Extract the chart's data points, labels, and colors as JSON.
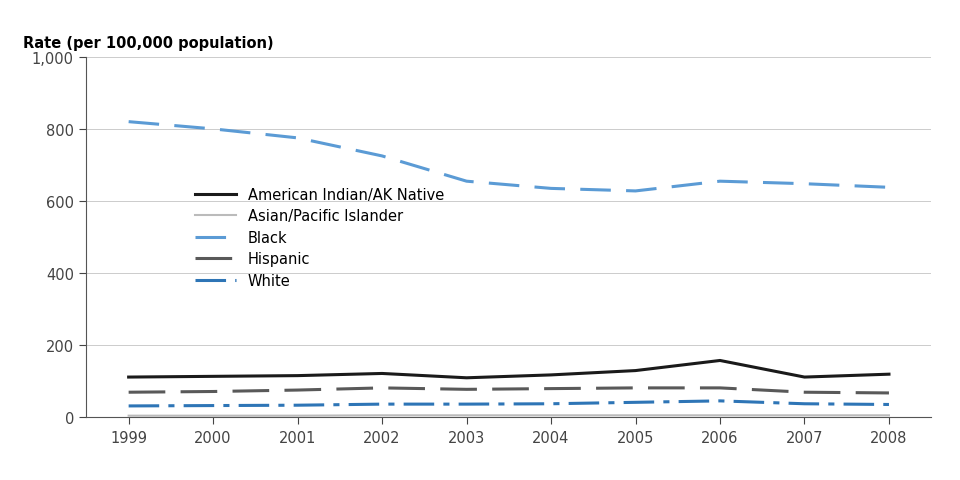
{
  "years": [
    1999,
    2000,
    2001,
    2002,
    2003,
    2004,
    2005,
    2006,
    2007,
    2008
  ],
  "series": {
    "American Indian/AK Native": {
      "values": [
        112,
        114,
        116,
        122,
        110,
        118,
        130,
        158,
        112,
        120
      ],
      "color": "#1a1a1a",
      "linestyle": "-",
      "linewidth": 2.2
    },
    "Asian/Pacific Islander": {
      "values": [
        5,
        5,
        5,
        6,
        6,
        6,
        6,
        6,
        6,
        6
      ],
      "color": "#bbbbbb",
      "linestyle": "-",
      "linewidth": 1.5
    },
    "Black": {
      "values": [
        820,
        800,
        775,
        725,
        655,
        635,
        628,
        655,
        648,
        638
      ],
      "color": "#5b9bd5",
      "linestyle": "--",
      "linewidth": 2.2,
      "dashes": [
        10,
        5
      ]
    },
    "Hispanic": {
      "values": [
        70,
        72,
        76,
        82,
        78,
        80,
        82,
        82,
        70,
        68
      ],
      "color": "#595959",
      "linestyle": "--",
      "linewidth": 2.2,
      "dashes": [
        12,
        5
      ]
    },
    "White": {
      "values": [
        32,
        33,
        34,
        37,
        37,
        38,
        42,
        46,
        38,
        36
      ],
      "color": "#2e75b6",
      "linestyle": "-.",
      "linewidth": 2.2,
      "dashes": [
        10,
        3,
        2,
        3
      ]
    }
  },
  "legend_order": [
    "American Indian/AK Native",
    "Asian/Pacific Islander",
    "Black",
    "Hispanic",
    "White"
  ],
  "ylabel": "Rate (per 100,000 population)",
  "ylim": [
    0,
    1000
  ],
  "yticks": [
    0,
    200,
    400,
    600,
    800,
    1000
  ],
  "ytick_labels": [
    "0",
    "200",
    "400",
    "600",
    "800",
    "1,000"
  ],
  "xlim_min": 1999,
  "xlim_max": 2008,
  "background_color": "#ffffff",
  "tick_fontsize": 10.5,
  "legend_fontsize": 10.5
}
